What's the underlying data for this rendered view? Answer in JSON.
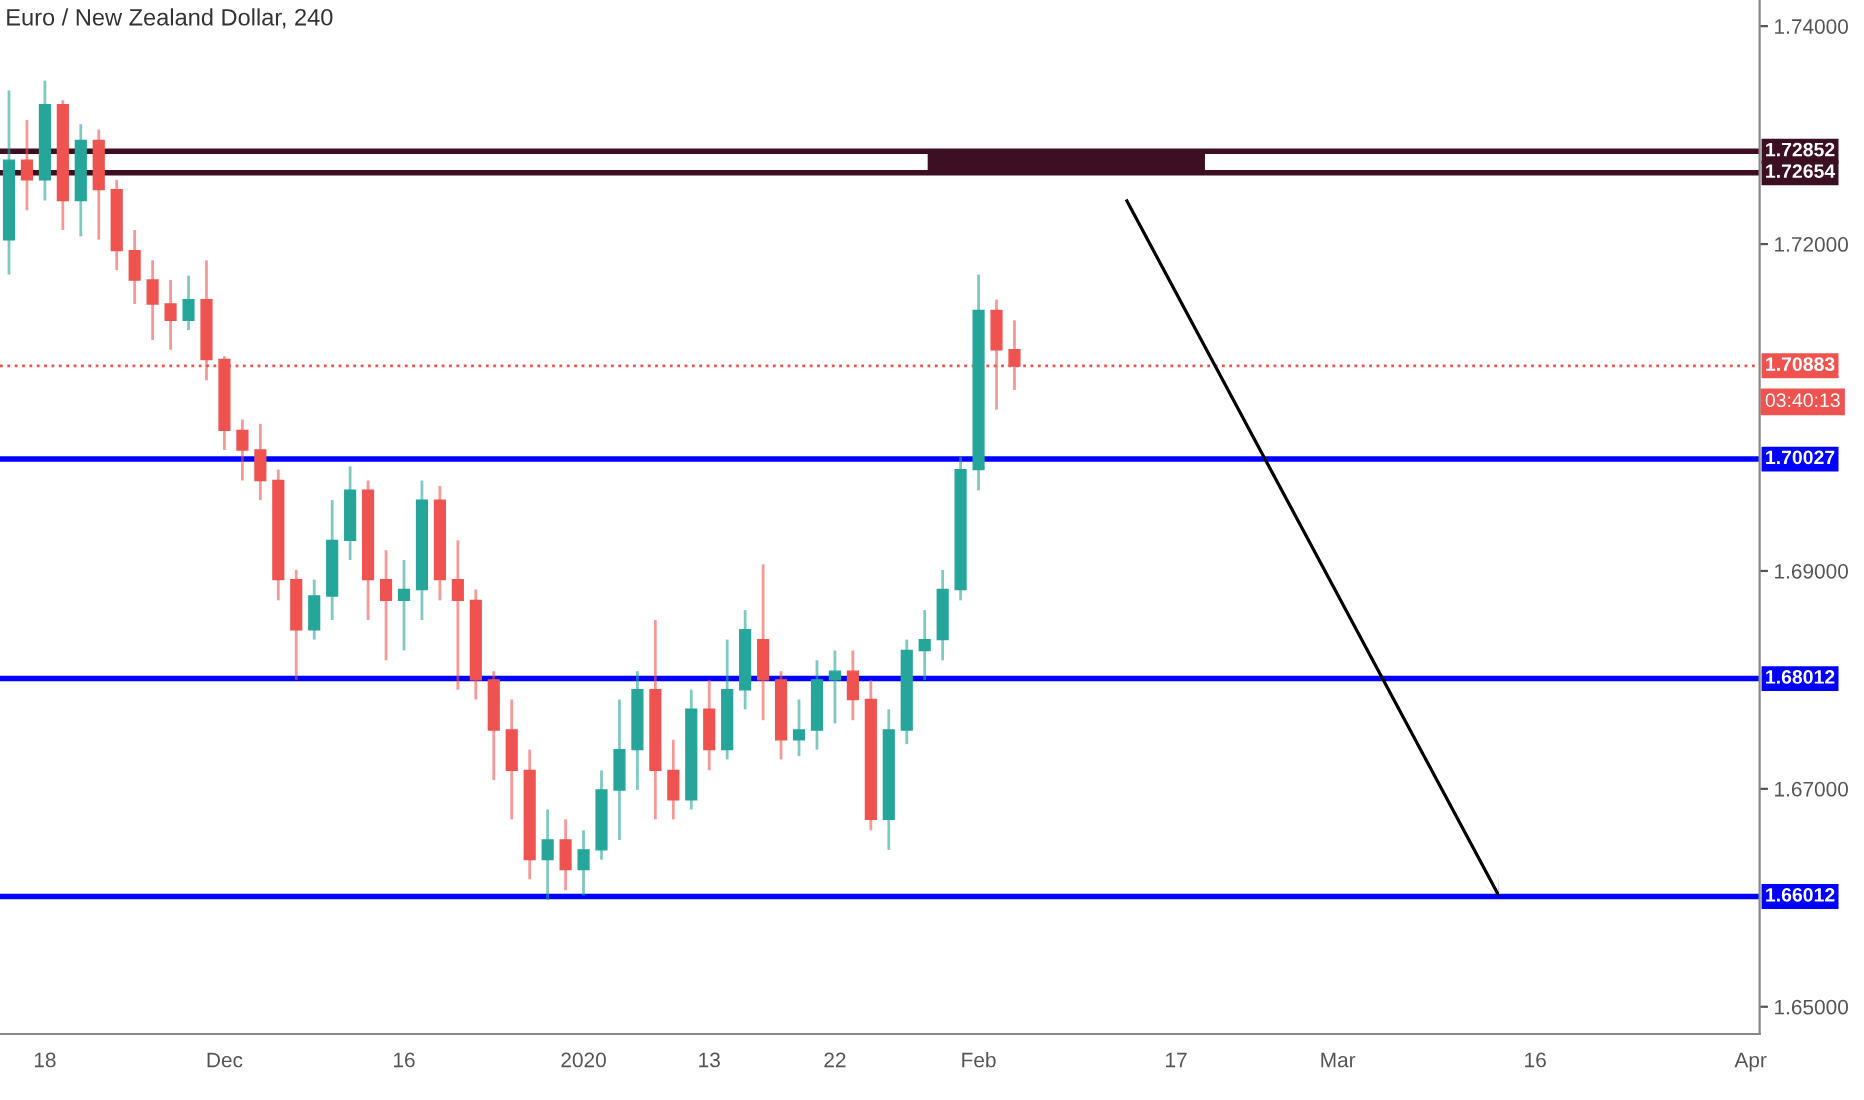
{
  "chart_data": {
    "type": "candlestick",
    "title": "Euro / New Zealand Dollar, 240",
    "categories": [
      null,
      null,
      "18",
      null,
      null,
      null,
      null,
      null,
      null,
      null,
      null,
      null,
      "Dec",
      null,
      null,
      null,
      null,
      null,
      null,
      null,
      null,
      null,
      "16",
      null,
      null,
      null,
      null,
      null,
      null,
      null,
      null,
      null,
      "2020",
      null,
      null,
      null,
      null,
      null,
      null,
      "13",
      null,
      null,
      null,
      null,
      null,
      null,
      "22",
      null,
      null,
      null,
      null,
      null,
      null,
      null,
      "Feb",
      null,
      null,
      null,
      null,
      null,
      null,
      null,
      null,
      null,
      null,
      "17",
      null,
      null,
      null,
      null,
      null,
      null,
      null,
      null,
      "Mar",
      null,
      null,
      null,
      null,
      null,
      null,
      null,
      null,
      null,
      null,
      "16",
      null,
      null,
      null,
      null,
      null,
      null,
      null,
      null,
      null,
      null,
      null,
      "Apr"
    ],
    "ohlc": [
      [
        1.7204,
        1.7341,
        1.7172,
        1.7277
      ],
      [
        1.7277,
        1.7314,
        1.7231,
        1.7259
      ],
      [
        1.7259,
        1.735,
        1.724,
        1.7328
      ],
      [
        1.7328,
        1.7332,
        1.7213,
        1.724
      ],
      [
        1.724,
        1.731,
        1.7207,
        1.7295
      ],
      [
        1.7295,
        1.7305,
        1.7204,
        1.725
      ],
      [
        1.725,
        1.7259,
        1.7176,
        1.7194
      ],
      [
        1.7194,
        1.7213,
        1.7145,
        1.7167
      ],
      [
        1.7167,
        1.7185,
        1.7112,
        1.7145
      ],
      [
        1.7145,
        1.7167,
        1.7103,
        1.713
      ],
      [
        1.713,
        1.7171,
        1.7121,
        1.7149
      ],
      [
        1.7149,
        1.7185,
        1.7075,
        1.7094
      ],
      [
        1.7094,
        1.7097,
        1.7011,
        1.7029
      ],
      [
        1.7029,
        1.7039,
        1.6983,
        1.7011
      ],
      [
        1.7011,
        1.7035,
        1.6965,
        1.6983
      ],
      [
        1.6983,
        1.6993,
        1.6873,
        1.6892
      ],
      [
        1.6892,
        1.6901,
        1.68,
        1.6846
      ],
      [
        1.6846,
        1.6892,
        1.6837,
        1.6877
      ],
      [
        1.6877,
        1.6965,
        1.6855,
        1.6928
      ],
      [
        1.6928,
        1.6996,
        1.691,
        1.6974
      ],
      [
        1.6974,
        1.6983,
        1.6855,
        1.6892
      ],
      [
        1.6892,
        1.6919,
        1.6818,
        1.6873
      ],
      [
        1.6873,
        1.691,
        1.6827,
        1.6883
      ],
      [
        1.6883,
        1.6983,
        1.6855,
        1.6965
      ],
      [
        1.6965,
        1.6978,
        1.6873,
        1.6892
      ],
      [
        1.6892,
        1.6928,
        1.6791,
        1.6873
      ],
      [
        1.6873,
        1.6883,
        1.6782,
        1.68
      ],
      [
        1.68,
        1.6808,
        1.6708,
        1.6754
      ],
      [
        1.6754,
        1.6782,
        1.6672,
        1.6717
      ],
      [
        1.6717,
        1.6736,
        1.6617,
        1.6635
      ],
      [
        1.6635,
        1.6681,
        1.6598,
        1.6653
      ],
      [
        1.6653,
        1.6672,
        1.6607,
        1.6626
      ],
      [
        1.6626,
        1.6662,
        1.6602,
        1.6644
      ],
      [
        1.6644,
        1.6717,
        1.6635,
        1.6699
      ],
      [
        1.6699,
        1.6782,
        1.6653,
        1.6736
      ],
      [
        1.6736,
        1.6808,
        1.6699,
        1.6791
      ],
      [
        1.6791,
        1.6855,
        1.6672,
        1.6717
      ],
      [
        1.6717,
        1.6745,
        1.6672,
        1.669
      ],
      [
        1.669,
        1.6791,
        1.6681,
        1.6773
      ],
      [
        1.6773,
        1.68,
        1.6717,
        1.6736
      ],
      [
        1.6736,
        1.6837,
        1.6727,
        1.6791
      ],
      [
        1.6791,
        1.6864,
        1.6773,
        1.6846
      ],
      [
        1.6837,
        1.6906,
        1.6763,
        1.68
      ],
      [
        1.68,
        1.6808,
        1.6727,
        1.6745
      ],
      [
        1.6745,
        1.6782,
        1.673,
        1.6754
      ],
      [
        1.6754,
        1.6818,
        1.6736,
        1.68
      ],
      [
        1.68,
        1.6827,
        1.676,
        1.6808
      ],
      [
        1.6808,
        1.6827,
        1.6763,
        1.6782
      ],
      [
        1.6782,
        1.68,
        1.6662,
        1.6672
      ],
      [
        1.6672,
        1.6773,
        1.6644,
        1.6754
      ],
      [
        1.6754,
        1.6837,
        1.6741,
        1.6827
      ],
      [
        1.6827,
        1.6864,
        1.68,
        1.6837
      ],
      [
        1.6837,
        1.6901,
        1.6818,
        1.6883
      ],
      [
        1.6883,
        1.7005,
        1.6873,
        1.6993
      ],
      [
        1.6993,
        1.7172,
        1.6974,
        1.7139
      ],
      [
        1.7139,
        1.7149,
        1.7048,
        1.7103
      ],
      [
        1.7103,
        1.713,
        1.7066,
        1.7088
      ],
      null,
      null,
      null,
      null,
      null,
      null,
      null,
      null,
      null,
      null,
      null,
      null,
      null,
      null,
      null,
      null,
      null,
      null,
      null,
      null,
      null,
      null,
      null,
      null,
      null,
      null,
      null,
      null,
      null,
      null,
      null,
      null,
      null,
      null,
      null,
      null,
      null,
      null,
      null,
      null,
      null
    ],
    "colors": [
      "#26a69a",
      "#ef5350",
      "#26a69a",
      "#ef5350",
      "#26a69a",
      "#ef5350",
      "#ef5350",
      "#ef5350",
      "#ef5350",
      "#ef5350",
      "#26a69a",
      "#ef5350",
      "#ef5350",
      "#ef5350",
      "#ef5350",
      "#ef5350",
      "#ef5350",
      "#26a69a",
      "#26a69a",
      "#26a69a",
      "#ef5350",
      "#ef5350",
      "#26a69a",
      "#26a69a",
      "#ef5350",
      "#ef5350",
      "#ef5350",
      "#ef5350",
      "#ef5350",
      "#ef5350",
      "#26a69a",
      "#ef5350",
      "#26a69a",
      "#26a69a",
      "#26a69a",
      "#26a69a",
      "#ef5350",
      "#ef5350",
      "#26a69a",
      "#ef5350",
      "#26a69a",
      "#26a69a",
      "#ef5350",
      "#ef5350",
      "#26a69a",
      "#26a69a",
      "#26a69a",
      "#ef5350",
      "#ef5350",
      "#26a69a",
      "#26a69a",
      "#26a69a",
      "#26a69a",
      "#26a69a",
      "#26a69a",
      "#ef5350",
      "#ef5350",
      null,
      null,
      null,
      null,
      null,
      null,
      null,
      null,
      null,
      null,
      null,
      null,
      null,
      null,
      null,
      null,
      null,
      null,
      null,
      null,
      null,
      null,
      null,
      null,
      null,
      null,
      null,
      null,
      null,
      null,
      null,
      null,
      null,
      null,
      null,
      null,
      null,
      null,
      null,
      null,
      null
    ],
    "ylim": [
      1.6475,
      1.7424
    ],
    "yticks": [
      {
        "value": 1.65,
        "label": "1.65000"
      },
      {
        "value": 1.67,
        "label": "1.67000"
      },
      {
        "value": 1.69,
        "label": "1.69000"
      },
      {
        "value": 1.72,
        "label": "1.72000"
      },
      {
        "value": 1.74,
        "label": "1.74000"
      }
    ],
    "ref_lines": [
      {
        "axis": "y",
        "value": 1.72852,
        "label": "1.72852",
        "color": "#3d0f22",
        "line_style": "solid"
      },
      {
        "axis": "y",
        "value": 1.72654,
        "label": "1.72654",
        "color": "#3d0f22",
        "line_style": "solid"
      },
      {
        "axis": "y",
        "value": 1.70883,
        "label": "1.70883",
        "color": "#ef5350",
        "line_style": "dotted"
      },
      {
        "axis": "y",
        "value": 1.70027,
        "label": "1.70027",
        "color": "#0000ff",
        "line_style": "solid"
      },
      {
        "axis": "y",
        "value": 1.68012,
        "label": "1.68012",
        "color": "#0000ff",
        "line_style": "solid"
      },
      {
        "axis": "y",
        "value": 1.66012,
        "label": "1.66012",
        "color": "#0000ff",
        "line_style": "solid"
      }
    ],
    "annotations": [
      "03:40:13"
    ]
  }
}
